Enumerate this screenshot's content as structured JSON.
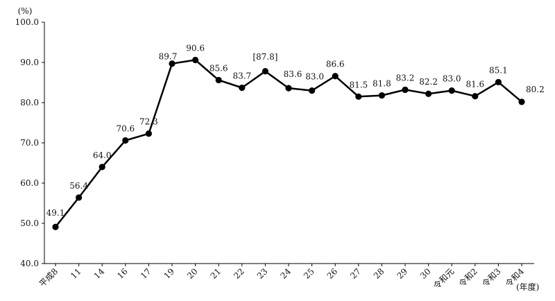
{
  "chart_data": {
    "type": "line",
    "title": "",
    "ylabel": "(%)",
    "xlabel": "(年度)",
    "ylim": [
      40.0,
      100.0
    ],
    "yticks": [
      "40.0",
      "50.0",
      "60.0",
      "70.0",
      "80.0",
      "90.0",
      "100.0"
    ],
    "grid": false,
    "categories": [
      "平成8",
      "11",
      "14",
      "16",
      "17",
      "19",
      "20",
      "21",
      "22",
      "23",
      "24",
      "25",
      "26",
      "27",
      "28",
      "29",
      "30",
      "令和元",
      "令和2",
      "令和3",
      "令和4"
    ],
    "values": [
      49.1,
      56.4,
      64.0,
      70.6,
      72.3,
      89.7,
      90.6,
      85.6,
      83.7,
      87.8,
      83.6,
      83.0,
      86.6,
      81.5,
      81.8,
      83.2,
      82.2,
      83.0,
      81.6,
      85.1,
      80.2
    ],
    "data_labels": [
      "49.1",
      "56.4",
      "64.0",
      "70.6",
      "72.3",
      "89.7",
      "90.6",
      "85.6",
      "83.7",
      "[87.8]",
      "83.6",
      "83.0",
      "86.6",
      "81.5",
      "81.8",
      "83.2",
      "82.2",
      "83.0",
      "81.6",
      "85.1",
      "80.2"
    ]
  }
}
